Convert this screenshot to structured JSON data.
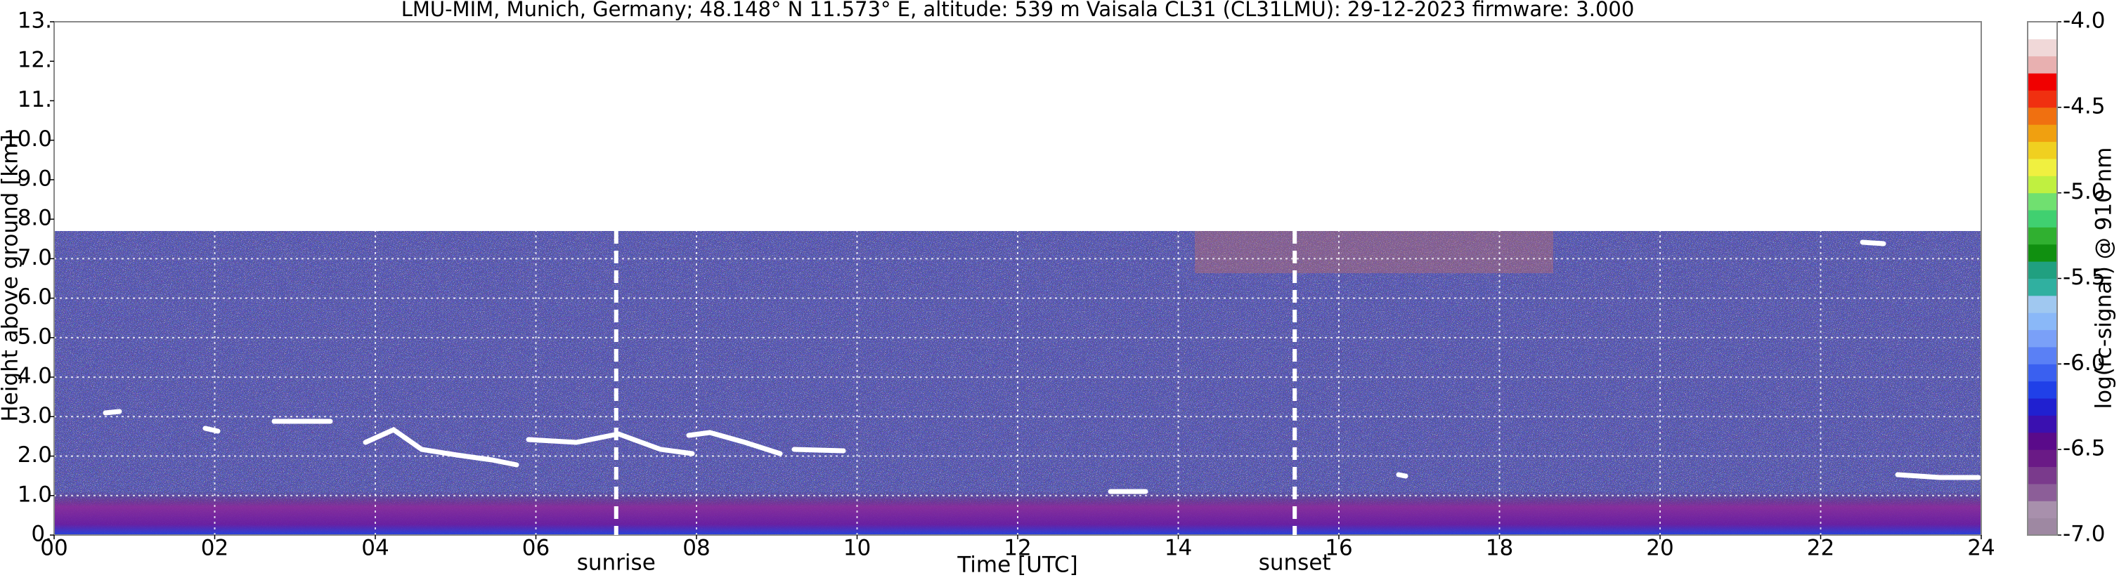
{
  "chart_data": {
    "type": "heatmap",
    "title": "LMU-MIM, Munich, Germany; 48.148° N 11.573° E, altitude: 539 m    Vaisala CL31 (CL31LMU): 29-12-2023    firmware: 3.000",
    "x_label": "Time [UTC]",
    "y_label": "Height above ground [km]",
    "colorbar_label": "log(rc-signal) @ 910 nm",
    "xlim": [
      0,
      24
    ],
    "xticks": [
      {
        "value": 0,
        "label": "00"
      },
      {
        "value": 2,
        "label": "02"
      },
      {
        "value": 4,
        "label": "04"
      },
      {
        "value": 6,
        "label": "06"
      },
      {
        "value": 8,
        "label": "08"
      },
      {
        "value": 10,
        "label": "10"
      },
      {
        "value": 12,
        "label": "12"
      },
      {
        "value": 14,
        "label": "14"
      },
      {
        "value": 16,
        "label": "16"
      },
      {
        "value": 18,
        "label": "18"
      },
      {
        "value": 20,
        "label": "20"
      },
      {
        "value": 22,
        "label": "22"
      },
      {
        "value": 24,
        "label": "24"
      }
    ],
    "ylim": [
      0,
      13
    ],
    "yticks": [
      {
        "value": 0,
        "label": "0."
      },
      {
        "value": 1,
        "label": "1.0"
      },
      {
        "value": 2,
        "label": "2.0"
      },
      {
        "value": 3,
        "label": "3.0"
      },
      {
        "value": 4,
        "label": "4.0"
      },
      {
        "value": 5,
        "label": "5.0"
      },
      {
        "value": 6,
        "label": "6.0"
      },
      {
        "value": 7,
        "label": "7.0"
      },
      {
        "value": 8,
        "label": "8.0"
      },
      {
        "value": 9,
        "label": "9.0"
      },
      {
        "value": 10,
        "label": "10.0"
      },
      {
        "value": 11,
        "label": "11."
      },
      {
        "value": 12,
        "label": "12."
      },
      {
        "value": 13,
        "label": "13."
      }
    ],
    "clim": [
      -7,
      -4
    ],
    "cticks": [
      {
        "value": -7,
        "label": "-7.0"
      },
      {
        "value": -6.5,
        "label": "-6.5"
      },
      {
        "value": -6,
        "label": "-6.0"
      },
      {
        "value": -5.5,
        "label": "-5.5"
      },
      {
        "value": -5,
        "label": "-5.0"
      },
      {
        "value": -4.5,
        "label": "-4.5"
      },
      {
        "value": -4,
        "label": "-4.0"
      }
    ],
    "colorbar_colors": [
      "#9e88a2",
      "#a890ac",
      "#8c5e98",
      "#7a3a8c",
      "#6a1a86",
      "#5a0a8a",
      "#3a10b0",
      "#2020d0",
      "#2040e8",
      "#3a60f0",
      "#5a80f5",
      "#7aa0f8",
      "#8ab8f8",
      "#a0c8f0",
      "#30b0a0",
      "#20a080",
      "#109010",
      "#30b030",
      "#40d070",
      "#70e070",
      "#c0f040",
      "#f0f040",
      "#f0d020",
      "#f0a010",
      "#f07010",
      "#f03010",
      "#f00000",
      "#e8b0b0",
      "#f0d8d8",
      "#ffffff"
    ],
    "grid": true,
    "annotations": [
      {
        "text": "sunrise",
        "x": 7.0
      },
      {
        "text": "sunset",
        "x": 15.45
      }
    ]
  }
}
